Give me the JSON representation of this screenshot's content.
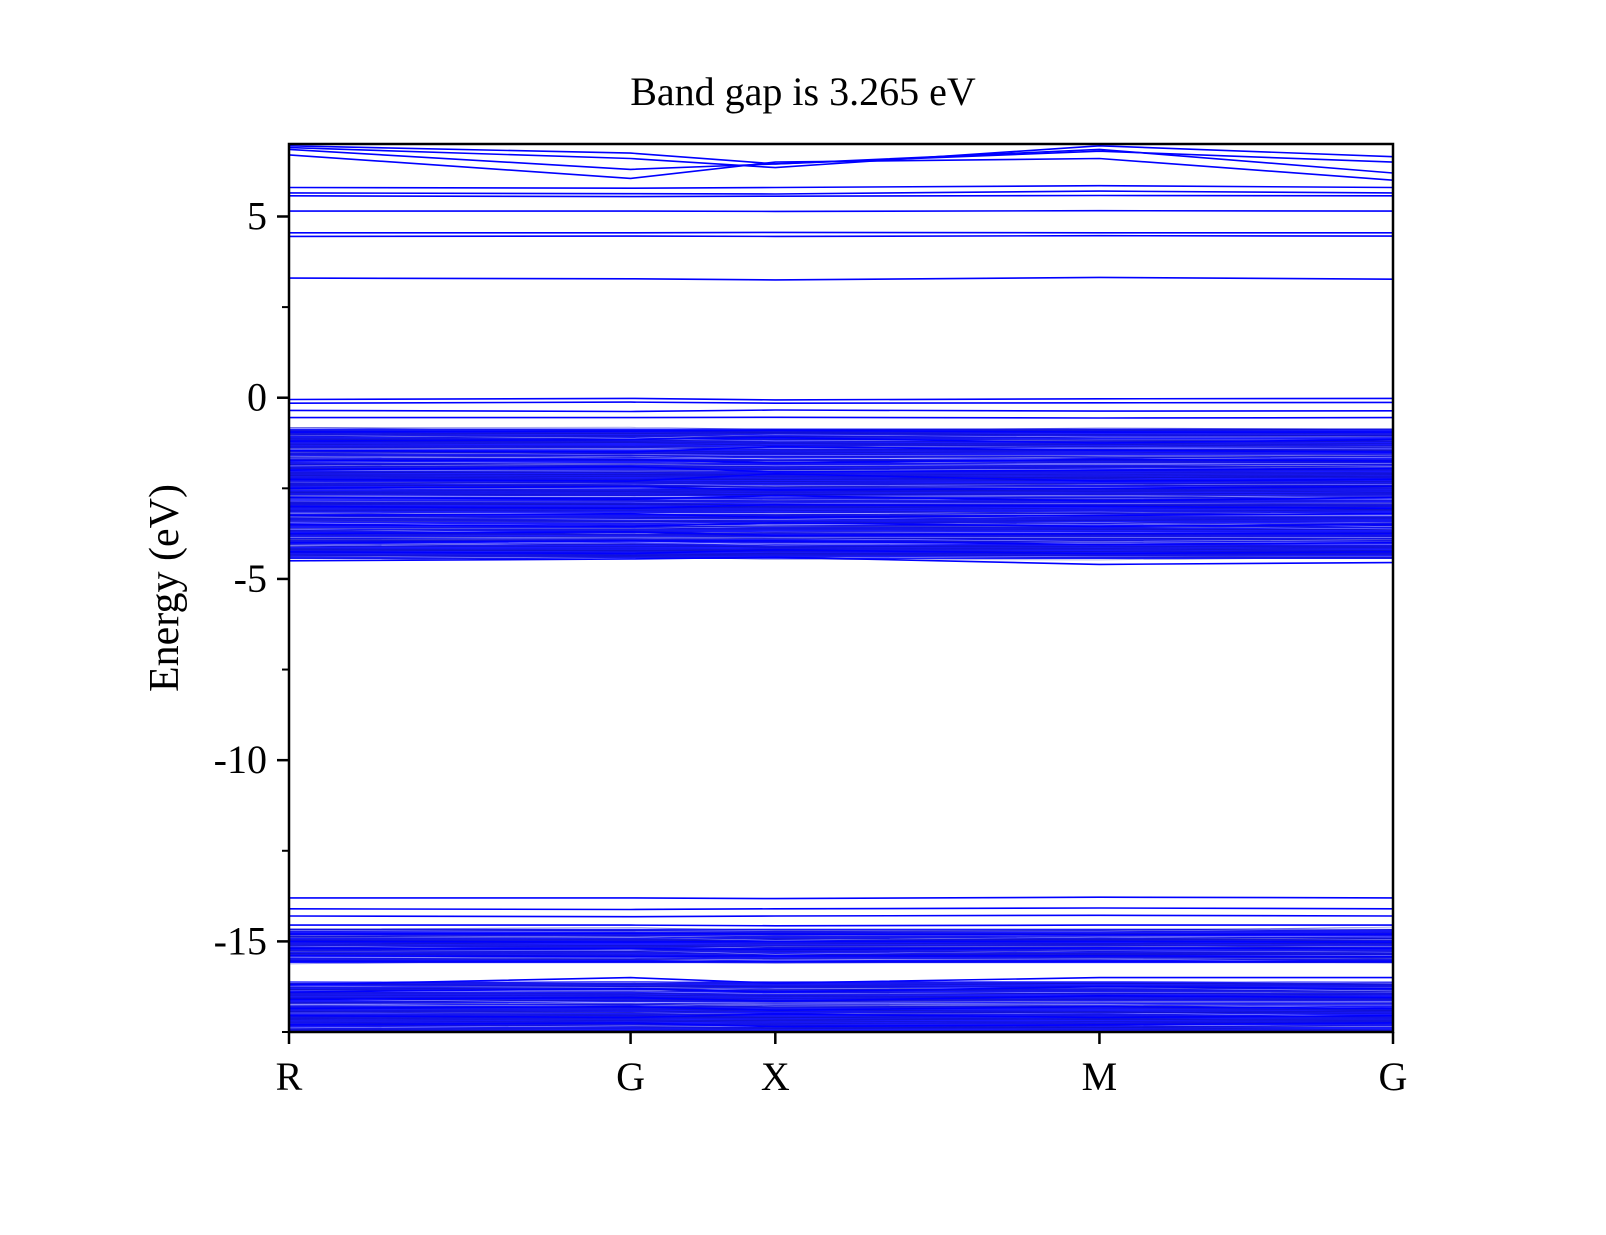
{
  "chart_data": {
    "type": "line",
    "title": "Band gap is 3.265 eV",
    "xlabel": "",
    "ylabel": "Energy (eV)",
    "band_gap_eV": 3.265,
    "line_color": "#0000ff",
    "x_ticks": [
      {
        "label": "R",
        "k": 0
      },
      {
        "label": "G",
        "k": 0.3094
      },
      {
        "label": "X",
        "k": 0.4405
      },
      {
        "label": "M",
        "k": 0.7341
      },
      {
        "label": "G",
        "k": 1.0
      }
    ],
    "xlim": [
      0,
      1
    ],
    "ylim": [
      -17.5,
      7
    ],
    "y_ticks": [
      5,
      0,
      -5,
      -10,
      -15
    ],
    "y_tick_labels": [
      "5",
      "0",
      "-5",
      "-10",
      "-15"
    ],
    "y_minor_step": 2.5,
    "grid": false,
    "legend": "none",
    "series": [
      {
        "values": [
          6.85,
          6.3,
          6.45,
          6.85,
          6.2
        ]
      },
      {
        "values": [
          6.7,
          6.05,
          6.5,
          6.6,
          6.0
        ]
      },
      {
        "values": [
          6.9,
          6.6,
          6.35,
          6.95,
          6.65
        ]
      },
      {
        "values": [
          6.95,
          6.75,
          6.45,
          6.8,
          6.5
        ]
      },
      {
        "values": [
          5.8,
          5.78,
          5.8,
          5.85,
          5.8
        ]
      },
      {
        "values": [
          5.65,
          5.63,
          5.62,
          5.7,
          5.65
        ]
      },
      {
        "values": [
          5.57,
          5.55,
          5.56,
          5.58,
          5.57
        ]
      },
      {
        "values": [
          5.15,
          5.15,
          5.14,
          5.16,
          5.15
        ]
      },
      {
        "values": [
          4.55,
          4.55,
          4.56,
          4.55,
          4.55
        ]
      },
      {
        "values": [
          4.45,
          4.46,
          4.45,
          4.47,
          4.46
        ]
      },
      {
        "values": [
          3.3,
          3.28,
          3.25,
          3.32,
          3.27
        ]
      },
      {
        "values": [
          -0.05,
          -0.02,
          -0.06,
          -0.03,
          -0.02
        ]
      },
      {
        "values": [
          -0.15,
          -0.12,
          -0.15,
          -0.14,
          -0.13
        ]
      },
      {
        "values": [
          -0.35,
          -0.38,
          -0.34,
          -0.37,
          -0.36
        ]
      },
      {
        "values": [
          -0.55,
          -0.55,
          -0.54,
          -0.56,
          -0.55
        ]
      },
      {
        "values": [
          -0.95,
          -0.92,
          -0.9,
          -0.95,
          -0.95
        ]
      },
      {
        "values": [
          -1.2,
          -1.15,
          -1.1,
          -1.25,
          -1.15
        ]
      },
      {
        "values": [
          -1.45,
          -1.5,
          -1.35,
          -1.45,
          -1.5
        ]
      },
      {
        "values": [
          -1.75,
          -1.7,
          -1.8,
          -1.7,
          -1.75
        ]
      },
      {
        "values": [
          -2.0,
          -1.9,
          -2.05,
          -2.0,
          -1.95
        ]
      },
      {
        "values": [
          -2.25,
          -2.3,
          -2.1,
          -2.3,
          -2.25
        ]
      },
      {
        "values": [
          -2.5,
          -2.45,
          -2.55,
          -2.5,
          -2.45
        ]
      },
      {
        "values": [
          -2.75,
          -2.8,
          -2.7,
          -2.85,
          -2.75
        ]
      },
      {
        "values": [
          -3.0,
          -3.05,
          -2.95,
          -3.0,
          -3.05
        ]
      },
      {
        "values": [
          -3.25,
          -3.2,
          -3.3,
          -3.25,
          -3.2
        ]
      },
      {
        "values": [
          -3.5,
          -3.55,
          -3.45,
          -3.55,
          -3.5
        ]
      },
      {
        "values": [
          -3.75,
          -3.7,
          -3.8,
          -3.75,
          -3.75
        ]
      },
      {
        "values": [
          -4.0,
          -3.95,
          -3.95,
          -4.05,
          -4.0
        ]
      },
      {
        "values": [
          -4.25,
          -4.3,
          -4.2,
          -4.3,
          -4.25
        ]
      },
      {
        "values": [
          -4.5,
          -4.45,
          -4.4,
          -4.6,
          -4.55
        ]
      },
      {
        "values": [
          -13.8,
          -13.8,
          -13.82,
          -13.78,
          -13.8
        ]
      },
      {
        "values": [
          -14.1,
          -14.12,
          -14.1,
          -14.08,
          -14.1
        ]
      },
      {
        "values": [
          -14.3,
          -14.32,
          -14.3,
          -14.28,
          -14.3
        ]
      },
      {
        "values": [
          -14.55,
          -14.55,
          -14.57,
          -14.55,
          -14.55
        ]
      },
      {
        "values": [
          -14.8,
          -14.78,
          -14.8,
          -14.82,
          -14.8
        ]
      },
      {
        "values": [
          -15.0,
          -15.02,
          -15.0,
          -15.0,
          -15.02
        ]
      },
      {
        "values": [
          -15.2,
          -15.2,
          -15.22,
          -15.18,
          -15.2
        ]
      },
      {
        "values": [
          -15.4,
          -15.42,
          -15.4,
          -15.4,
          -15.42
        ]
      },
      {
        "values": [
          -15.55,
          -15.55,
          -15.55,
          -15.55,
          -15.55
        ]
      },
      {
        "values": [
          -16.2,
          -16.0,
          -16.15,
          -16.0,
          -16.0
        ]
      },
      {
        "values": [
          -16.4,
          -16.3,
          -16.4,
          -16.25,
          -16.3
        ]
      },
      {
        "values": [
          -16.6,
          -16.55,
          -16.65,
          -16.5,
          -16.55
        ]
      },
      {
        "values": [
          -16.85,
          -16.8,
          -16.9,
          -16.8,
          -16.85
        ]
      },
      {
        "values": [
          -17.05,
          -17.1,
          -17.0,
          -17.1,
          -17.05
        ]
      },
      {
        "values": [
          -17.3,
          -17.25,
          -17.35,
          -17.3,
          -17.25
        ]
      }
    ],
    "dense_bands": [
      {
        "emin": -4.45,
        "emax": -0.85
      },
      {
        "emin": -15.6,
        "emax": -14.65
      },
      {
        "emin": -17.5,
        "emax": -16.1
      }
    ]
  }
}
